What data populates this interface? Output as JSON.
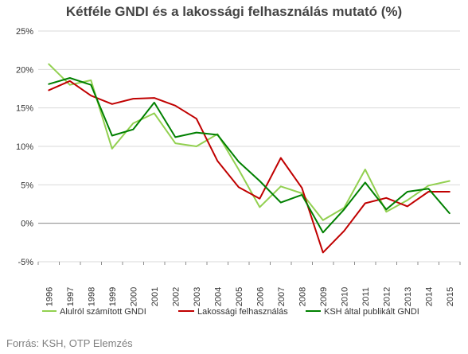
{
  "title": "Kétféle GNDI és a lakossági felhasználás mutató (%)",
  "source": "Forrás: KSH, OTP Elemzés",
  "chart_data": {
    "type": "line",
    "title": "Kétféle GNDI és a lakossági felhasználás mutató (%)",
    "xlabel": "",
    "ylabel": "",
    "ylim": [
      -5,
      25
    ],
    "yticks": [
      "25%",
      "20%",
      "15%",
      "10%",
      "5%",
      "0%",
      "-5%"
    ],
    "ytick_values": [
      25,
      20,
      15,
      10,
      5,
      0,
      -5
    ],
    "grid": true,
    "legend_position": "bottom",
    "categories": [
      "1996",
      "1997",
      "1998",
      "1999",
      "2000",
      "2001",
      "2002",
      "2003",
      "2004",
      "2005",
      "2006",
      "2007",
      "2008",
      "2009",
      "2010",
      "2011",
      "2012",
      "2013",
      "2014",
      "2015"
    ],
    "series": [
      {
        "name": "Alulról számított GNDI",
        "color": "#92d050",
        "values": [
          20.7,
          18.0,
          18.6,
          9.7,
          13.0,
          14.3,
          10.4,
          10.0,
          11.6,
          7.0,
          2.1,
          4.8,
          3.9,
          0.4,
          2.0,
          7.0,
          1.5,
          3.0,
          4.9,
          5.5
        ]
      },
      {
        "name": "Lakossági felhasználás",
        "color": "#c00000",
        "values": [
          17.3,
          18.5,
          16.6,
          15.5,
          16.2,
          16.3,
          15.3,
          13.6,
          8.1,
          4.7,
          3.2,
          8.5,
          4.6,
          -3.8,
          -1.0,
          2.6,
          3.3,
          2.2,
          4.1,
          4.1
        ]
      },
      {
        "name": "KSH által publikált GNDI",
        "color": "#008000",
        "values": [
          18.1,
          18.9,
          18.0,
          11.4,
          12.2,
          15.7,
          11.2,
          11.8,
          11.5,
          8.0,
          5.5,
          2.7,
          3.7,
          -1.2,
          1.8,
          5.3,
          1.8,
          4.1,
          4.5,
          1.3
        ]
      }
    ]
  }
}
